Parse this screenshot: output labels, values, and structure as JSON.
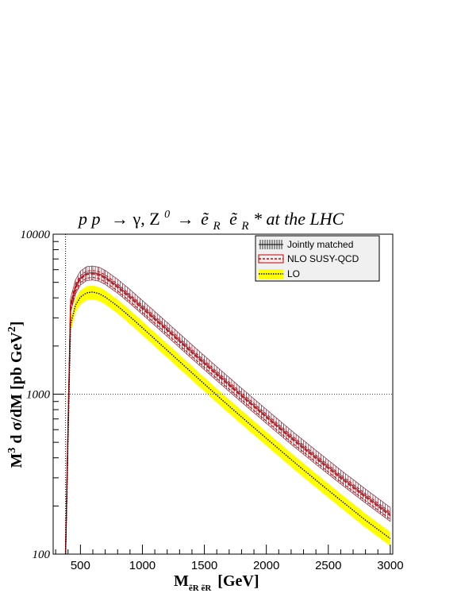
{
  "chart_data": {
    "type": "line",
    "title": "p p  → γ, Z⁰ → ẽ_R ẽ_R* at the LHC",
    "title_parts": {
      "pp": "p p",
      "arrow1": "→",
      "gamma_z": "γ, Z",
      "z_sup": "0",
      "arrow2": "→",
      "selectron": "ẽ",
      "sub_r": "R",
      "star_tail": "* at the LHC"
    },
    "xlabel": "M",
    "xlabel_sub": "ẽR ẽR",
    "xlabel_unit": "[GeV]",
    "ylabel": "M³ d σ/dM  [pb GeV²]",
    "ylabel_parts": {
      "m": "M",
      "m_sup": "3",
      "dsig": " d σ/dM  [pb GeV",
      "gev_sup": "2",
      "close": "]"
    },
    "xlim": [
      280,
      3020
    ],
    "ylim": [
      100,
      10000
    ],
    "y_scale": "log",
    "x_ticks": [
      500,
      1000,
      1500,
      2000,
      2500,
      3000
    ],
    "x_tick_labels": [
      "500",
      "1000",
      "1500",
      "2000",
      "2500",
      "3000"
    ],
    "y_ticks": [
      100,
      1000,
      10000
    ],
    "y_tick_labels": [
      "100",
      "1000",
      "10000"
    ],
    "reference_line_y": 1000,
    "threshold_x": 380,
    "legend_position": "top-right",
    "series": [
      {
        "name": "Jointly matched",
        "style": "hatched-band",
        "color": "#8b3a4a",
        "x": [
          380,
          420,
          460,
          500,
          550,
          600,
          650,
          700,
          800,
          900,
          1000,
          1200,
          1400,
          1600,
          1800,
          2000,
          2200,
          2400,
          2600,
          2800,
          3000
        ],
        "values": [
          100,
          3600,
          4700,
          5350,
          5700,
          5750,
          5650,
          5400,
          4750,
          4100,
          3500,
          2550,
          1850,
          1350,
          990,
          730,
          540,
          405,
          305,
          232,
          178
        ],
        "band_width": 0.1
      },
      {
        "name": "NLO SUSY-QCD",
        "style": "dashed",
        "color": "#cc0000",
        "x": [
          380,
          420,
          460,
          500,
          550,
          600,
          650,
          700,
          800,
          900,
          1000,
          1200,
          1400,
          1600,
          1800,
          2000,
          2200,
          2400,
          2600,
          2800,
          3000
        ],
        "values": [
          100,
          3500,
          4600,
          5250,
          5600,
          5650,
          5550,
          5300,
          4650,
          4000,
          3420,
          2500,
          1810,
          1320,
          970,
          715,
          528,
          396,
          298,
          227,
          174
        ],
        "band_width": 0.05
      },
      {
        "name": "LO",
        "style": "dotted",
        "color": "#000000",
        "band_color": "#ffff00",
        "x": [
          380,
          420,
          460,
          500,
          550,
          600,
          650,
          700,
          800,
          900,
          1000,
          1200,
          1400,
          1600,
          1800,
          2000,
          2200,
          2400,
          2600,
          2800,
          3000
        ],
        "values": [
          100,
          2700,
          3600,
          4050,
          4300,
          4350,
          4250,
          4050,
          3550,
          3050,
          2600,
          1880,
          1360,
          985,
          720,
          530,
          390,
          290,
          217,
          163,
          125
        ],
        "band_width": 0.1
      }
    ]
  }
}
